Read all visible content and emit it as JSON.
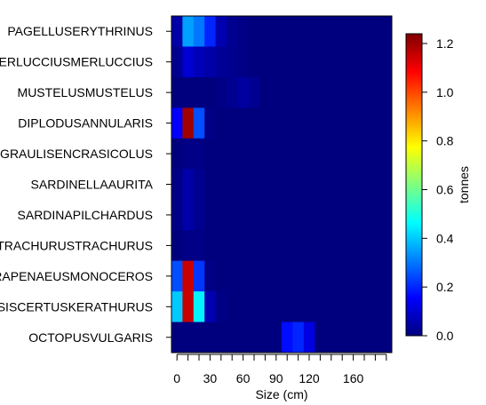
{
  "chart_data": {
    "type": "heatmap",
    "title": "",
    "xlabel": "Size (cm)",
    "ylabel": "",
    "xlim": [
      -5,
      195
    ],
    "bin_width": 10,
    "x_bin_starts": [
      -5,
      5,
      15,
      25,
      35,
      45,
      55,
      65,
      75,
      85,
      95,
      105,
      115,
      125,
      135,
      145,
      155,
      165,
      175,
      185
    ],
    "x_ticks": [
      0,
      10,
      20,
      30,
      40,
      50,
      60,
      70,
      80,
      90,
      100,
      110,
      120,
      130,
      140,
      150,
      160,
      170,
      180,
      190
    ],
    "x_tick_labels": [
      {
        "value": 0,
        "label": "0"
      },
      {
        "value": 30,
        "label": "30"
      },
      {
        "value": 60,
        "label": "60"
      },
      {
        "value": 90,
        "label": "90"
      },
      {
        "value": 120,
        "label": "120"
      },
      {
        "value": 160,
        "label": "160"
      }
    ],
    "species": [
      "PAGELLUSERYTHRINUS",
      "MERLUCCIUSMERLUCCIUS",
      "MUSTELUSMUSTELUS",
      "DIPLODUSANNULARIS",
      "ENGRAULISENCRASICOLUS",
      "SARDINELLAAURITA",
      "SARDINAPILCHARDUS",
      "TRACHURUSTRACHURUS",
      "PARAPENAEUSMONOCEROS",
      "METAPENAEOPSISCERTUSKERATHURUS",
      "OCTOPUSVULGARIS"
    ],
    "values": [
      [
        0.05,
        0.35,
        0.3,
        0.2,
        0.06,
        0.02,
        0.01,
        0,
        0,
        0,
        0,
        0,
        0,
        0,
        0,
        0,
        0,
        0,
        0,
        0
      ],
      [
        0.02,
        0.1,
        0.07,
        0.05,
        0.03,
        0.02,
        0.01,
        0,
        0,
        0,
        0,
        0,
        0,
        0,
        0,
        0,
        0,
        0,
        0,
        0
      ],
      [
        0,
        0,
        0,
        0,
        0.01,
        0.02,
        0.04,
        0.02,
        0,
        0,
        0,
        0,
        0,
        0,
        0,
        0,
        0,
        0,
        0,
        0
      ],
      [
        0.15,
        1.2,
        0.25,
        0.01,
        0,
        0,
        0,
        0,
        0,
        0,
        0,
        0,
        0,
        0,
        0,
        0,
        0,
        0,
        0,
        0
      ],
      [
        0,
        0.01,
        0.01,
        0,
        0,
        0,
        0,
        0,
        0,
        0,
        0,
        0,
        0,
        0,
        0,
        0,
        0,
        0,
        0,
        0
      ],
      [
        0.01,
        0.05,
        0.02,
        0,
        0,
        0,
        0,
        0,
        0,
        0,
        0,
        0,
        0,
        0,
        0,
        0,
        0,
        0,
        0,
        0
      ],
      [
        0.01,
        0.05,
        0.02,
        0,
        0,
        0,
        0,
        0,
        0,
        0,
        0,
        0,
        0,
        0,
        0,
        0,
        0,
        0,
        0,
        0
      ],
      [
        0,
        0.01,
        0.01,
        0,
        0,
        0,
        0,
        0,
        0,
        0,
        0,
        0,
        0,
        0,
        0,
        0,
        0,
        0,
        0,
        0
      ],
      [
        0.25,
        1.15,
        0.22,
        0.01,
        0,
        0,
        0,
        0,
        0,
        0,
        0,
        0,
        0,
        0,
        0,
        0,
        0,
        0,
        0,
        0
      ],
      [
        0.4,
        1.15,
        0.45,
        0.06,
        0.01,
        0,
        0,
        0,
        0,
        0,
        0,
        0,
        0,
        0,
        0,
        0,
        0,
        0,
        0,
        0
      ],
      [
        0,
        0,
        0,
        0,
        0,
        0,
        0,
        0,
        0,
        0,
        0.17,
        0.2,
        0.12,
        0,
        0,
        0,
        0,
        0,
        0,
        0
      ]
    ],
    "legend": {
      "label": "tonnes",
      "position": "right",
      "min": 0,
      "max": 1.24,
      "ticks": [
        0,
        0.2,
        0.4,
        0.6,
        0.8,
        1,
        1.2
      ],
      "tick_labels": [
        "0.0",
        "0.2",
        "0.4",
        "0.6",
        "0.8",
        "1.0",
        "1.2"
      ]
    },
    "colors": {
      "palette": [
        "#00007F",
        "#0000FF",
        "#007FFF",
        "#00FFFF",
        "#7FFF7F",
        "#FFFF00",
        "#FF7F00",
        "#FF0000",
        "#7F0000"
      ],
      "background": "#ffffff"
    }
  }
}
